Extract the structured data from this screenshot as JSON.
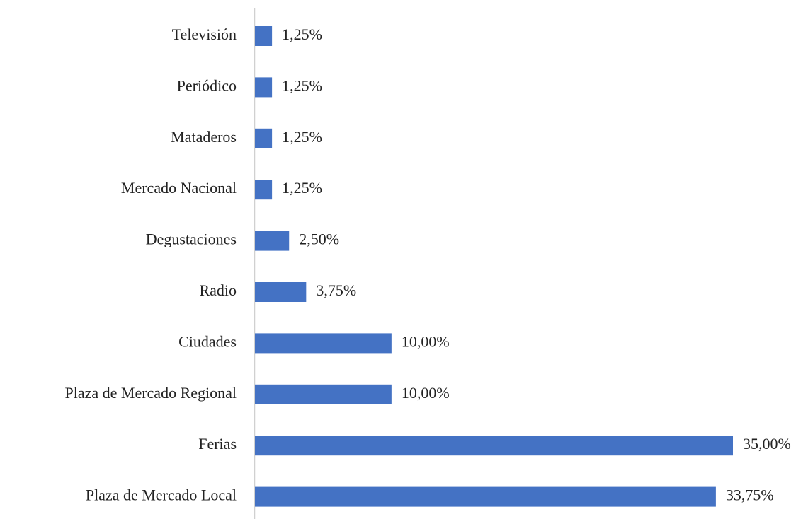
{
  "chart_data": {
    "type": "bar",
    "orientation": "horizontal",
    "categories": [
      "Televisión",
      "Periódico",
      "Mataderos",
      "Mercado Nacional",
      "Degustaciones",
      "Radio",
      "Ciudades",
      "Plaza de Mercado Regional",
      "Ferias",
      "Plaza de Mercado Local"
    ],
    "values": [
      1.25,
      1.25,
      1.25,
      1.25,
      2.5,
      3.75,
      10,
      10,
      35,
      33.75
    ],
    "value_labels": [
      "1,25%",
      "1,25%",
      "1,25%",
      "1,25%",
      "2,50%",
      "3,75%",
      "10,00%",
      "10,00%",
      "35,00%",
      "33,75%"
    ],
    "color": "#4472c4"
  }
}
